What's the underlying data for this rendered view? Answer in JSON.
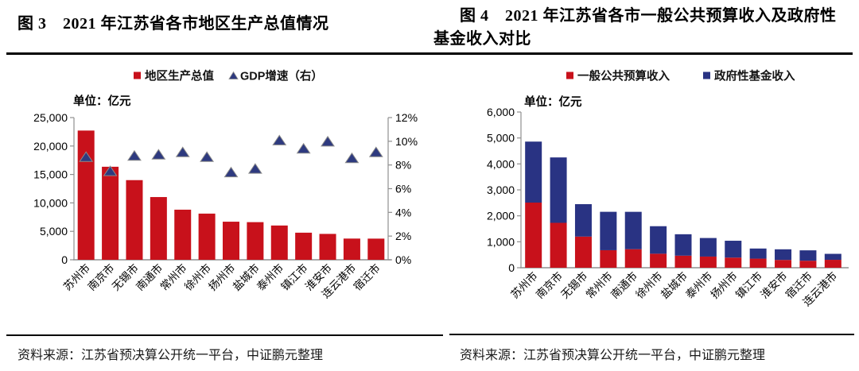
{
  "page": {
    "figure3": {
      "title": "图 3　2021 年江苏省各市地区生产总值情况",
      "source": "资料来源：江苏省预决算公开统一平台，中证鹏元整理"
    },
    "figure4": {
      "title": "图 4　2021 年江苏省各市一般公共预算收入及政府性基金收入对比",
      "source": "资料来源：江苏省预决算公开统一平台，中证鹏元整理"
    }
  },
  "colors": {
    "bar_red": "#C8111B",
    "bar_blue": "#293383",
    "triangle_navy": "#2E3A7F",
    "axis_gray": "#8f8f8f",
    "text_black": "#000000"
  },
  "chart_data": [
    {
      "id": "fig3",
      "type": "bar",
      "stacked": false,
      "title": "2021年江苏省各市地区生产总值情况",
      "unit": "单位：亿元",
      "grid": false,
      "legend_position": "top",
      "categories": [
        "苏州市",
        "南京市",
        "无锡市",
        "南通市",
        "常州市",
        "徐州市",
        "扬州市",
        "盐城市",
        "泰州市",
        "镇江市",
        "淮安市",
        "连云港市",
        "宿迁市"
      ],
      "series": [
        {
          "name": "地区生产总值",
          "type": "bar",
          "axis": "left",
          "marker": "square",
          "color": "#C8111B",
          "values": [
            22718,
            16355,
            14003,
            11027,
            8808,
            8117,
            6696,
            6617,
            6025,
            4763,
            4550,
            3728,
            3719
          ]
        },
        {
          "name": "GDP增速（右）",
          "type": "scatter",
          "axis": "right",
          "marker": "triangle",
          "color": "#2E3A7F",
          "values": [
            8.7,
            7.5,
            8.8,
            8.9,
            9.1,
            8.7,
            7.4,
            7.7,
            10.1,
            9.4,
            10.0,
            8.6,
            9.1
          ]
        }
      ],
      "left_axis": {
        "min": 0,
        "max": 25000,
        "step": 5000,
        "labels": [
          "0",
          "5,000",
          "10,000",
          "15,000",
          "20,000",
          "25,000"
        ]
      },
      "right_axis": {
        "min": 0,
        "max": 12,
        "step": 2,
        "unit": "%",
        "labels": [
          "0%",
          "2%",
          "4%",
          "6%",
          "8%",
          "10%",
          "12%"
        ]
      }
    },
    {
      "id": "fig4",
      "type": "bar",
      "stacked": true,
      "title": "2021年江苏省各市一般公共预算收入及政府性基金收入对比",
      "unit": "单位：亿元",
      "grid": false,
      "legend_position": "top",
      "categories": [
        "苏州市",
        "南京市",
        "无锡市",
        "常州市",
        "南通市",
        "徐州市",
        "盐城市",
        "泰州市",
        "扬州市",
        "镇江市",
        "淮安市",
        "宿迁市",
        "连云港市"
      ],
      "series": [
        {
          "name": "一般公共预算收入",
          "type": "bar",
          "axis": "left",
          "marker": "square",
          "color": "#C8111B",
          "values": [
            2510,
            1730,
            1200,
            675,
            714,
            540,
            465,
            430,
            390,
            350,
            300,
            270,
            305
          ]
        },
        {
          "name": "政府性基金收入",
          "type": "bar",
          "axis": "left",
          "marker": "square",
          "color": "#293383",
          "values": [
            2350,
            2520,
            1250,
            1480,
            1440,
            1060,
            825,
            715,
            650,
            390,
            410,
            400,
            230
          ]
        }
      ],
      "left_axis": {
        "min": 0,
        "max": 6000,
        "step": 1000,
        "labels": [
          "0",
          "1,000",
          "2,000",
          "3,000",
          "4,000",
          "5,000",
          "6,000"
        ]
      }
    }
  ]
}
